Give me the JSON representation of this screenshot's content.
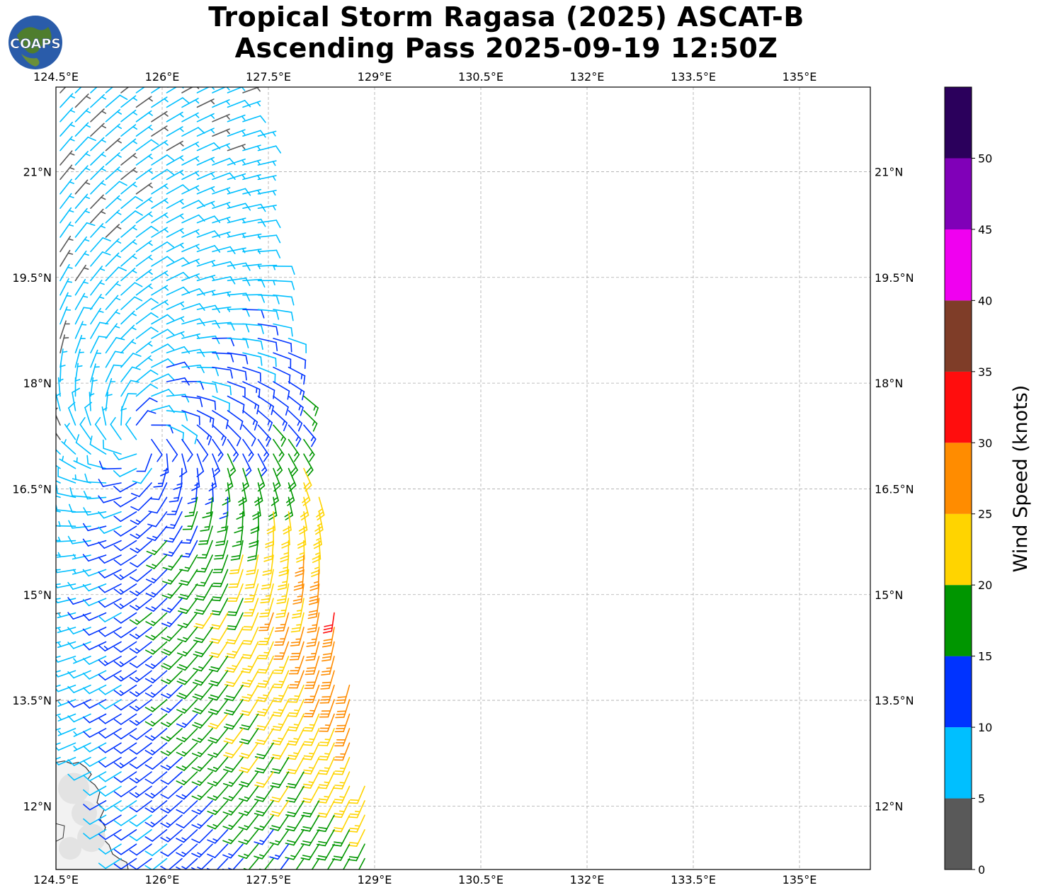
{
  "title_lines": [
    "Tropical Storm Ragasa (2025) ASCAT-B",
    "Ascending Pass 2025-09-19 12:50Z"
  ],
  "logo_text": "COAPS",
  "chart_data": {
    "type": "wind-barbs",
    "xlim": [
      124.5,
      136.0
    ],
    "ylim": [
      11.1,
      22.2
    ],
    "x_ticks": [
      124.5,
      126.0,
      127.5,
      129.0,
      130.5,
      132.0,
      133.5,
      135.0
    ],
    "x_tick_labels": [
      "124.5°E",
      "126°E",
      "127.5°E",
      "129°E",
      "130.5°E",
      "132°E",
      "133.5°E",
      "135°E"
    ],
    "y_ticks": [
      12.0,
      13.5,
      15.0,
      16.5,
      18.0,
      19.5,
      21.0
    ],
    "y_tick_labels": [
      "12°N",
      "13.5°N",
      "15°N",
      "16.5°N",
      "18°N",
      "19.5°N",
      "21°N"
    ],
    "grid": true,
    "swath": {
      "west_edge_lon": 124.5,
      "east_edge": [
        [
          22.2,
          127.3
        ],
        [
          21.0,
          127.4
        ],
        [
          19.5,
          127.6
        ],
        [
          18.0,
          128.0
        ],
        [
          16.5,
          128.2
        ],
        [
          15.0,
          128.4
        ],
        [
          13.5,
          128.7
        ],
        [
          12.0,
          128.9
        ],
        [
          11.1,
          129.1
        ]
      ]
    },
    "storm_center": {
      "lat": 17.2,
      "lon": 125.7
    },
    "max_wind_knots": 34,
    "land_outline": "Samar / Catanduanes coast (lower-left)",
    "colorbar": {
      "label": "Wind Speed (knots)",
      "bounds": [
        0,
        5,
        10,
        15,
        20,
        25,
        30,
        35,
        40,
        45,
        50,
        55
      ],
      "tick_values": [
        0,
        5,
        10,
        15,
        20,
        25,
        30,
        35,
        40,
        45,
        50
      ],
      "colors": [
        "#595959",
        "#00bfff",
        "#0033ff",
        "#009600",
        "#ffd400",
        "#ff8c00",
        "#ff0d0d",
        "#7f3d28",
        "#f000f0",
        "#8000b8",
        "#2b005c"
      ]
    }
  }
}
